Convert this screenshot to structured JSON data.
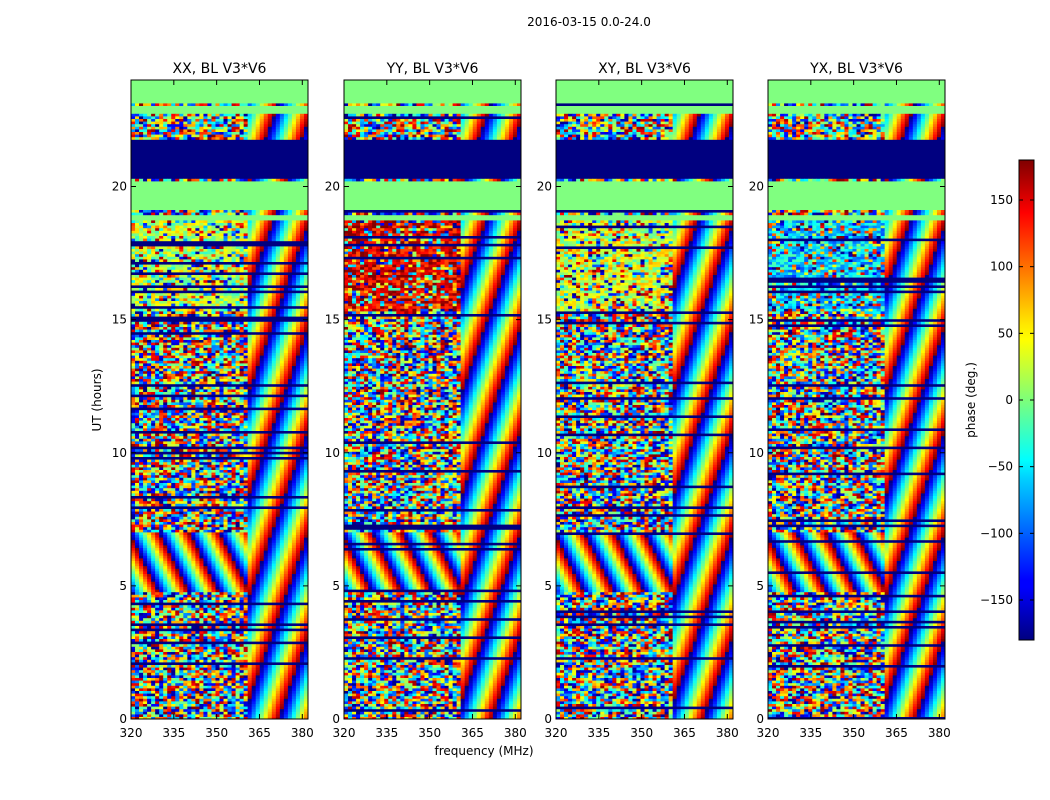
{
  "figure": {
    "suptitle": "2016-03-15 0.0-24.0",
    "ylabel": "UT (hours)",
    "xlabel": "frequency (MHz)"
  },
  "chart_data": {
    "type": "heatmap",
    "title": "2016-03-15 0.0-24.0",
    "xlabel": "frequency (MHz)",
    "ylabel": "UT (hours)",
    "xlim": [
      320,
      382
    ],
    "ylim": [
      0,
      24
    ],
    "xticks": [
      320,
      335,
      350,
      365,
      380
    ],
    "yticks": [
      0,
      5,
      10,
      15,
      20
    ],
    "colormap": "jet",
    "panels": [
      {
        "title": "XX, BL V3*V6",
        "pol": "XX",
        "mean_phase": 20
      },
      {
        "title": "YY, BL V3*V6",
        "pol": "YY",
        "mean_phase": 150
      },
      {
        "title": "XY, BL V3*V6",
        "pol": "XY",
        "mean_phase": 30
      },
      {
        "title": "YX, BL V3*V6",
        "pol": "YX",
        "mean_phase": -60
      }
    ],
    "bands": [
      {
        "from": 20.3,
        "to": 21.8,
        "kind": "solid",
        "phase": -180,
        "note": "dark blue block"
      },
      {
        "from": 23.1,
        "to": 24.0,
        "kind": "solid",
        "phase": 0
      },
      {
        "from": 22.7,
        "to": 23.0,
        "kind": "solid",
        "phase": 0
      },
      {
        "from": 19.1,
        "to": 20.2,
        "kind": "solid",
        "phase": 0
      },
      {
        "from": 18.7,
        "to": 18.95,
        "kind": "solid",
        "phase": 0
      }
    ],
    "colorbar": {
      "label": "phase (deg.)",
      "range": [
        -180,
        180
      ],
      "ticks": [
        -150,
        -100,
        -50,
        0,
        50,
        100,
        150
      ]
    }
  }
}
